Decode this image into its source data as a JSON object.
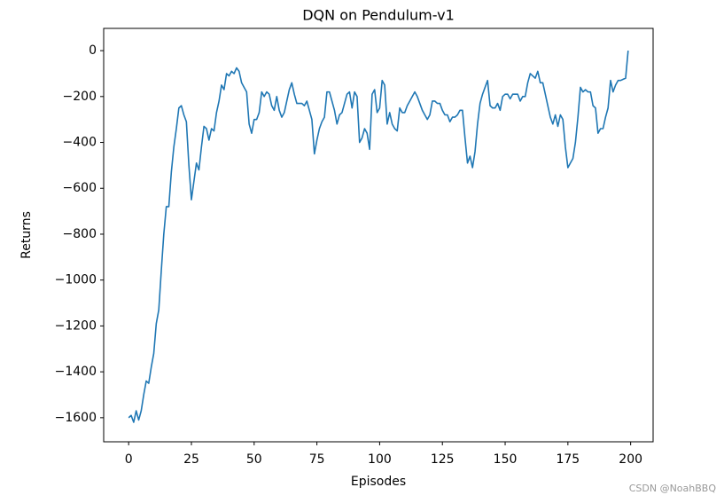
{
  "chart_data": {
    "type": "line",
    "title": "DQN on Pendulum-v1",
    "x_label": "Episodes",
    "y_label": "Returns",
    "x": [
      0,
      1,
      2,
      3,
      4,
      5,
      6,
      7,
      8,
      9,
      10,
      11,
      12,
      13,
      14,
      15,
      16,
      17,
      18,
      19,
      20,
      21,
      22,
      23,
      24,
      25,
      26,
      27,
      28,
      29,
      30,
      31,
      32,
      33,
      34,
      35,
      36,
      37,
      38,
      39,
      40,
      41,
      42,
      43,
      44,
      45,
      46,
      47,
      48,
      49,
      50,
      51,
      52,
      53,
      54,
      55,
      56,
      57,
      58,
      59,
      60,
      61,
      62,
      63,
      64,
      65,
      66,
      67,
      68,
      69,
      70,
      71,
      72,
      73,
      74,
      75,
      76,
      77,
      78,
      79,
      80,
      81,
      82,
      83,
      84,
      85,
      86,
      87,
      88,
      89,
      90,
      91,
      92,
      93,
      94,
      95,
      96,
      97,
      98,
      99,
      100,
      101,
      102,
      103,
      104,
      105,
      106,
      107,
      108,
      109,
      110,
      111,
      112,
      113,
      114,
      115,
      116,
      117,
      118,
      119,
      120,
      121,
      122,
      123,
      124,
      125,
      126,
      127,
      128,
      129,
      130,
      131,
      132,
      133,
      134,
      135,
      136,
      137,
      138,
      139,
      140,
      141,
      142,
      143,
      144,
      145,
      146,
      147,
      148,
      149,
      150,
      151,
      152,
      153,
      154,
      155,
      156,
      157,
      158,
      159,
      160,
      161,
      162,
      163,
      164,
      165,
      166,
      167,
      168,
      169,
      170,
      171,
      172,
      173,
      174,
      175,
      176,
      177,
      178,
      179,
      180,
      181,
      182,
      183,
      184,
      185,
      186,
      187,
      188,
      189,
      190,
      191,
      192,
      193,
      194,
      195,
      196,
      197,
      198,
      199
    ],
    "values": [
      -1600,
      -1590,
      -1620,
      -1570,
      -1610,
      -1570,
      -1500,
      -1440,
      -1450,
      -1380,
      -1320,
      -1190,
      -1130,
      -960,
      -800,
      -680,
      -680,
      -530,
      -420,
      -340,
      -250,
      -240,
      -280,
      -310,
      -500,
      -650,
      -570,
      -490,
      -520,
      -420,
      -330,
      -340,
      -390,
      -340,
      -350,
      -270,
      -220,
      -150,
      -170,
      -100,
      -110,
      -90,
      -100,
      -75,
      -90,
      -140,
      -160,
      -180,
      -320,
      -360,
      -300,
      -300,
      -270,
      -180,
      -200,
      -180,
      -190,
      -240,
      -260,
      -200,
      -260,
      -290,
      -270,
      -220,
      -170,
      -140,
      -190,
      -230,
      -230,
      -230,
      -240,
      -220,
      -260,
      -300,
      -450,
      -390,
      -340,
      -310,
      -290,
      -180,
      -180,
      -220,
      -260,
      -320,
      -280,
      -270,
      -230,
      -190,
      -180,
      -250,
      -180,
      -200,
      -400,
      -380,
      -340,
      -360,
      -430,
      -190,
      -170,
      -270,
      -250,
      -130,
      -150,
      -320,
      -270,
      -320,
      -340,
      -350,
      -250,
      -270,
      -270,
      -240,
      -220,
      -200,
      -180,
      -200,
      -230,
      -260,
      -280,
      -300,
      -280,
      -220,
      -220,
      -230,
      -230,
      -260,
      -280,
      -280,
      -310,
      -290,
      -290,
      -280,
      -260,
      -260,
      -380,
      -490,
      -460,
      -510,
      -440,
      -320,
      -230,
      -190,
      -160,
      -130,
      -240,
      -250,
      -250,
      -230,
      -260,
      -200,
      -190,
      -190,
      -210,
      -190,
      -190,
      -190,
      -220,
      -200,
      -200,
      -140,
      -100,
      -110,
      -120,
      -90,
      -140,
      -140,
      -190,
      -240,
      -290,
      -320,
      -280,
      -330,
      -280,
      -300,
      -420,
      -510,
      -490,
      -470,
      -400,
      -290,
      -160,
      -180,
      -170,
      -180,
      -180,
      -240,
      -250,
      -360,
      -340,
      -340,
      -290,
      -250,
      -130,
      -180,
      -150,
      -130,
      -130,
      -125,
      -120,
      0
    ],
    "color": "#1f77b4",
    "xlim": [
      -9.95,
      208.95
    ],
    "ylim": [
      -1705,
      97
    ],
    "xticks": [
      0,
      25,
      50,
      75,
      100,
      125,
      150,
      175,
      200
    ],
    "yticks": [
      {
        "value": -1600,
        "label": "−1600"
      },
      {
        "value": -1400,
        "label": "−1400"
      },
      {
        "value": -1200,
        "label": "−1200"
      },
      {
        "value": -1000,
        "label": "−1000"
      },
      {
        "value": -800,
        "label": "−800"
      },
      {
        "value": -600,
        "label": "−600"
      },
      {
        "value": -400,
        "label": "−400"
      },
      {
        "value": -200,
        "label": "−200"
      },
      0
    ],
    "grid": false,
    "watermark": "CSDN @NoahBBQ"
  }
}
